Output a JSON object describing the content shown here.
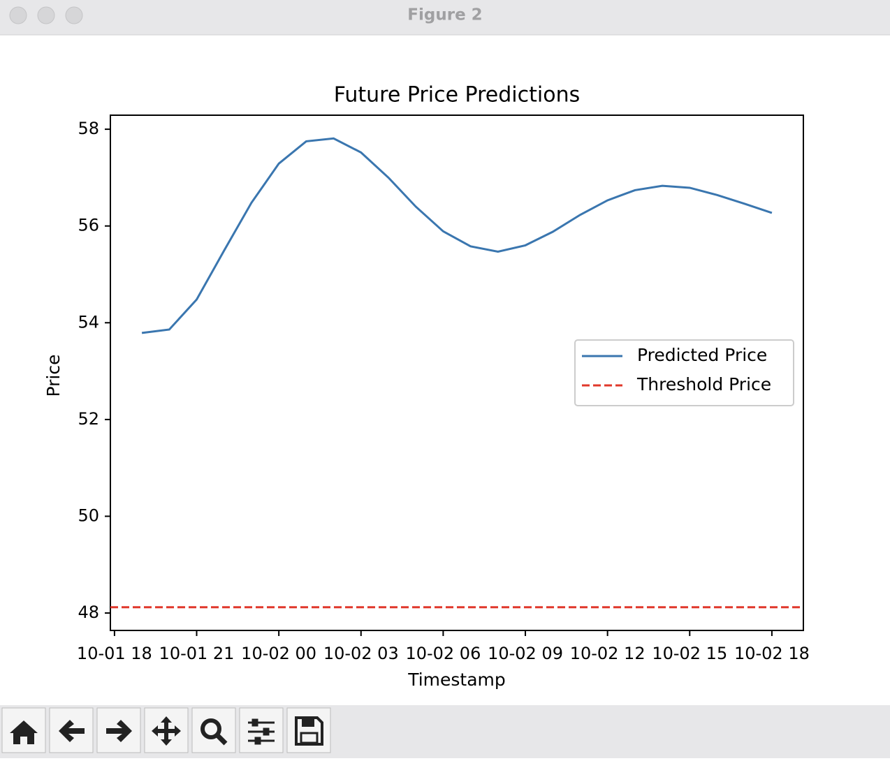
{
  "window": {
    "title": "Figure 2"
  },
  "chart_data": {
    "type": "line",
    "title": "Future Price Predictions",
    "x_label": "Timestamp",
    "y_label": "Price",
    "x": [
      "10-01 19",
      "10-01 20",
      "10-01 21",
      "10-01 22",
      "10-01 23",
      "10-02 00",
      "10-02 01",
      "10-02 02",
      "10-02 03",
      "10-02 04",
      "10-02 05",
      "10-02 06",
      "10-02 07",
      "10-02 08",
      "10-02 09",
      "10-02 10",
      "10-02 11",
      "10-02 12",
      "10-02 13",
      "10-02 14",
      "10-02 15",
      "10-02 16",
      "10-02 17",
      "10-02 18"
    ],
    "series": [
      {
        "name": "Predicted Price",
        "color": "#3a76af",
        "values": [
          53.79,
          53.86,
          54.48,
          55.49,
          56.48,
          57.29,
          57.75,
          57.81,
          57.52,
          57.0,
          56.4,
          55.89,
          55.58,
          55.47,
          55.6,
          55.88,
          56.23,
          56.53,
          56.74,
          56.83,
          56.79,
          56.64,
          56.46,
          56.27
        ]
      }
    ],
    "hlines": [
      {
        "name": "Threshold Price",
        "color": "#e0382b",
        "dashed": true,
        "value": 48.12
      }
    ],
    "xlim": [
      "10-01 17:51",
      "10-02 19:09"
    ],
    "xticks": [
      "10-01 18",
      "10-01 21",
      "10-02 00",
      "10-02 03",
      "10-02 06",
      "10-02 09",
      "10-02 12",
      "10-02 15",
      "10-02 18"
    ],
    "ylim": [
      47.64,
      58.29
    ],
    "yticks": [
      48,
      50,
      52,
      54,
      56,
      58
    ],
    "grid": false,
    "legend": "center right"
  }
}
